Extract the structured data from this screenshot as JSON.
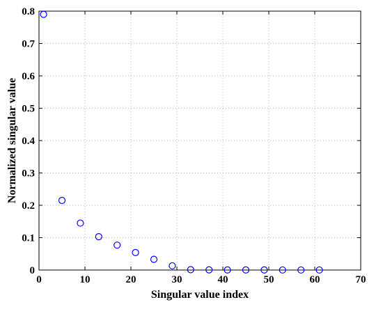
{
  "chart_data": {
    "type": "scatter",
    "xlabel": "Singular value index",
    "ylabel": "Normalized singular value",
    "xlim": [
      0,
      70
    ],
    "ylim": [
      0,
      0.8
    ],
    "xticks": [
      0,
      10,
      20,
      30,
      40,
      50,
      60,
      70
    ],
    "yticks": [
      0,
      0.1,
      0.2,
      0.3,
      0.4,
      0.5,
      0.6,
      0.7,
      0.8
    ],
    "grid": true,
    "marker": "circle-open",
    "marker_color": "#0000ff",
    "x": [
      1,
      5,
      9,
      13,
      17,
      21,
      25,
      29,
      33,
      37,
      41,
      45,
      49,
      53,
      57,
      61
    ],
    "y": [
      0.79,
      0.215,
      0.145,
      0.103,
      0.077,
      0.054,
      0.033,
      0.013,
      0.001,
      0.0005,
      0.0003,
      0.0002,
      0.0002,
      0.0001,
      0.0001,
      0.0001
    ]
  }
}
